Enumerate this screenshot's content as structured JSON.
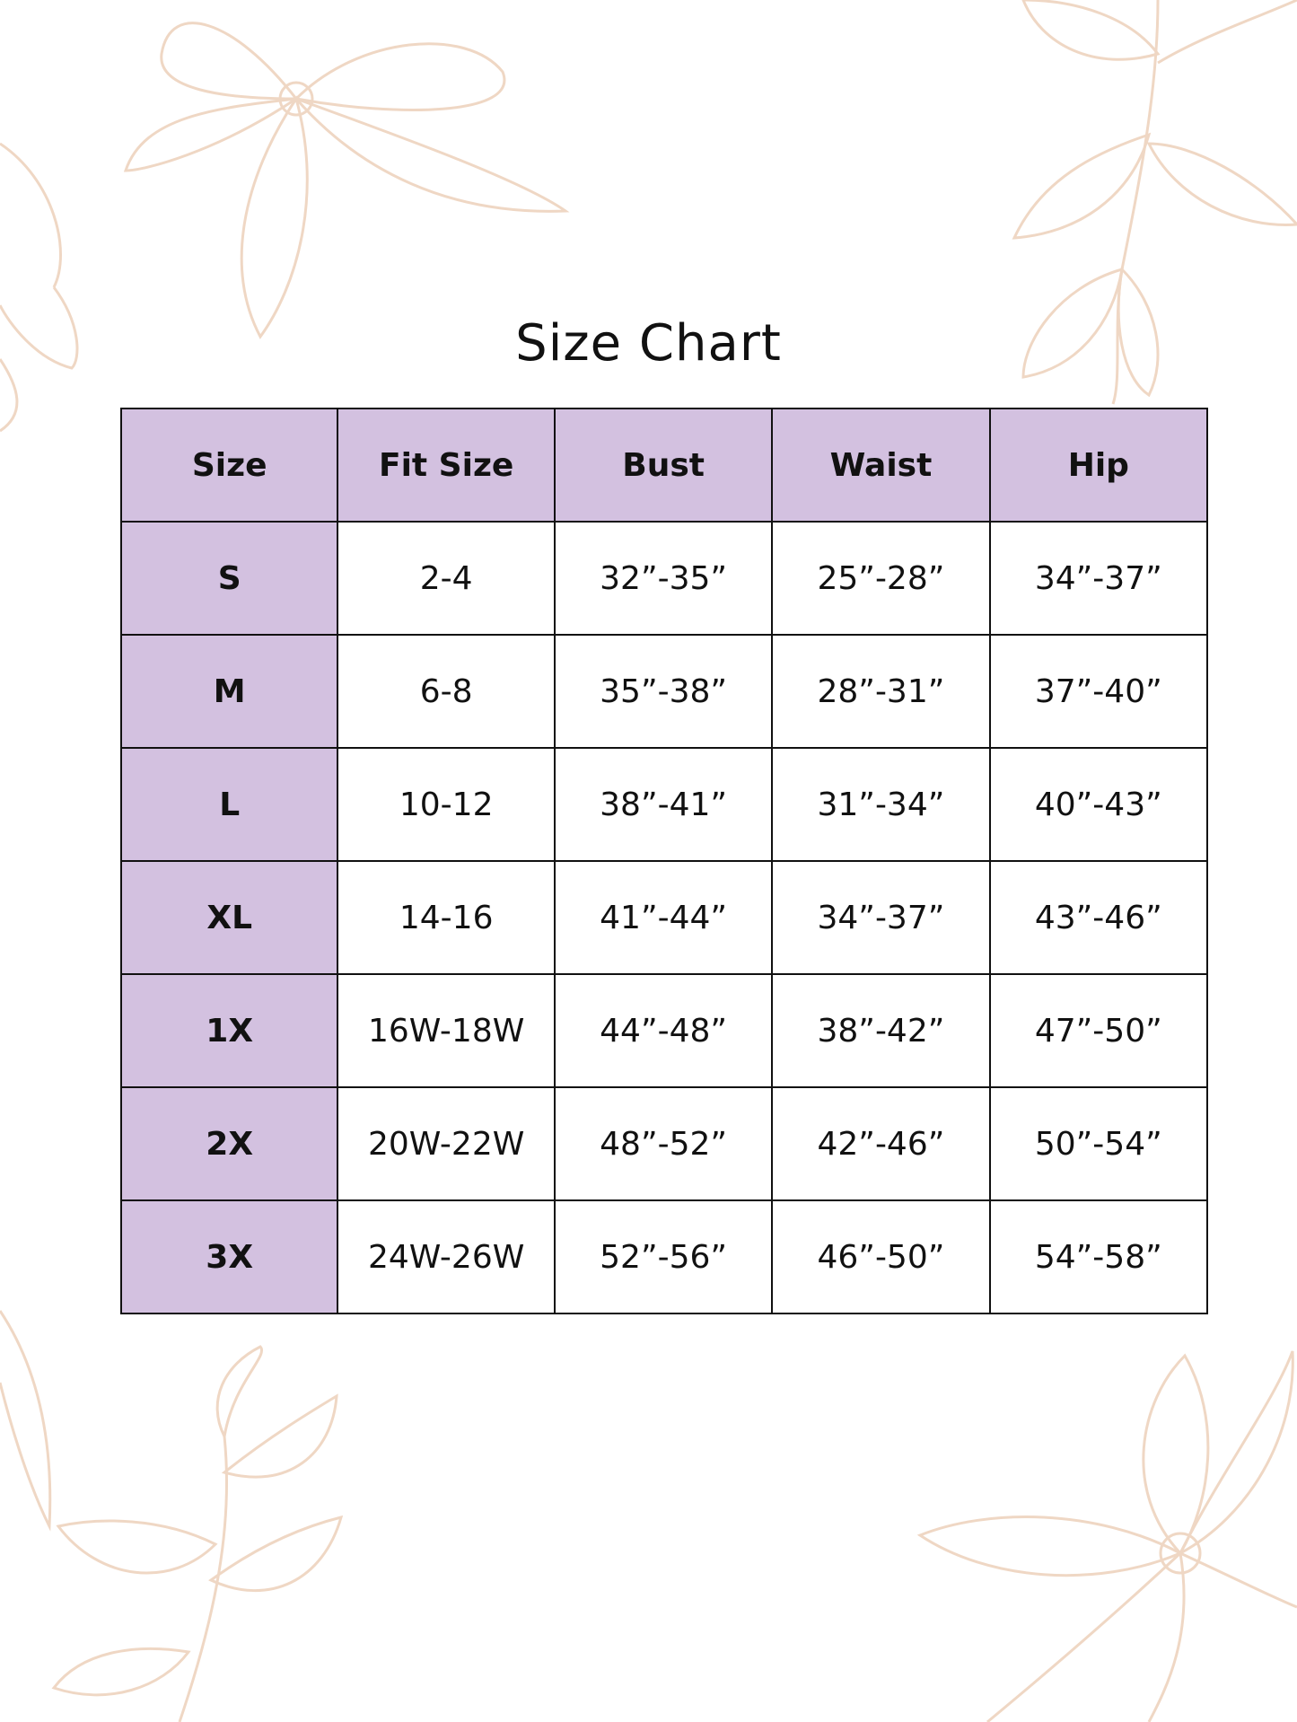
{
  "title": "Size Chart",
  "colors": {
    "header_bg": "#d3c1e0",
    "border": "#111111",
    "floral_line": "#efd7c4"
  },
  "decoration": "floral line drawings in corners",
  "table": {
    "headers": [
      "Size",
      "Fit Size",
      "Bust",
      "Waist",
      "Hip"
    ],
    "rows": [
      [
        "S",
        "2-4",
        "32”-35”",
        "25”-28”",
        "34”-37”"
      ],
      [
        "M",
        "6-8",
        "35”-38”",
        "28”-31”",
        "37”-40”"
      ],
      [
        "L",
        "10-12",
        "38”-41”",
        "31”-34”",
        "40”-43”"
      ],
      [
        "XL",
        "14-16",
        "41”-44”",
        "34”-37”",
        "43”-46”"
      ],
      [
        "1X",
        "16W-18W",
        "44”-48”",
        "38”-42”",
        "47”-50”"
      ],
      [
        "2X",
        "20W-22W",
        "48”-52”",
        "42”-46”",
        "50”-54”"
      ],
      [
        "3X",
        "24W-26W",
        "52”-56”",
        "46”-50”",
        "54”-58”"
      ]
    ]
  }
}
